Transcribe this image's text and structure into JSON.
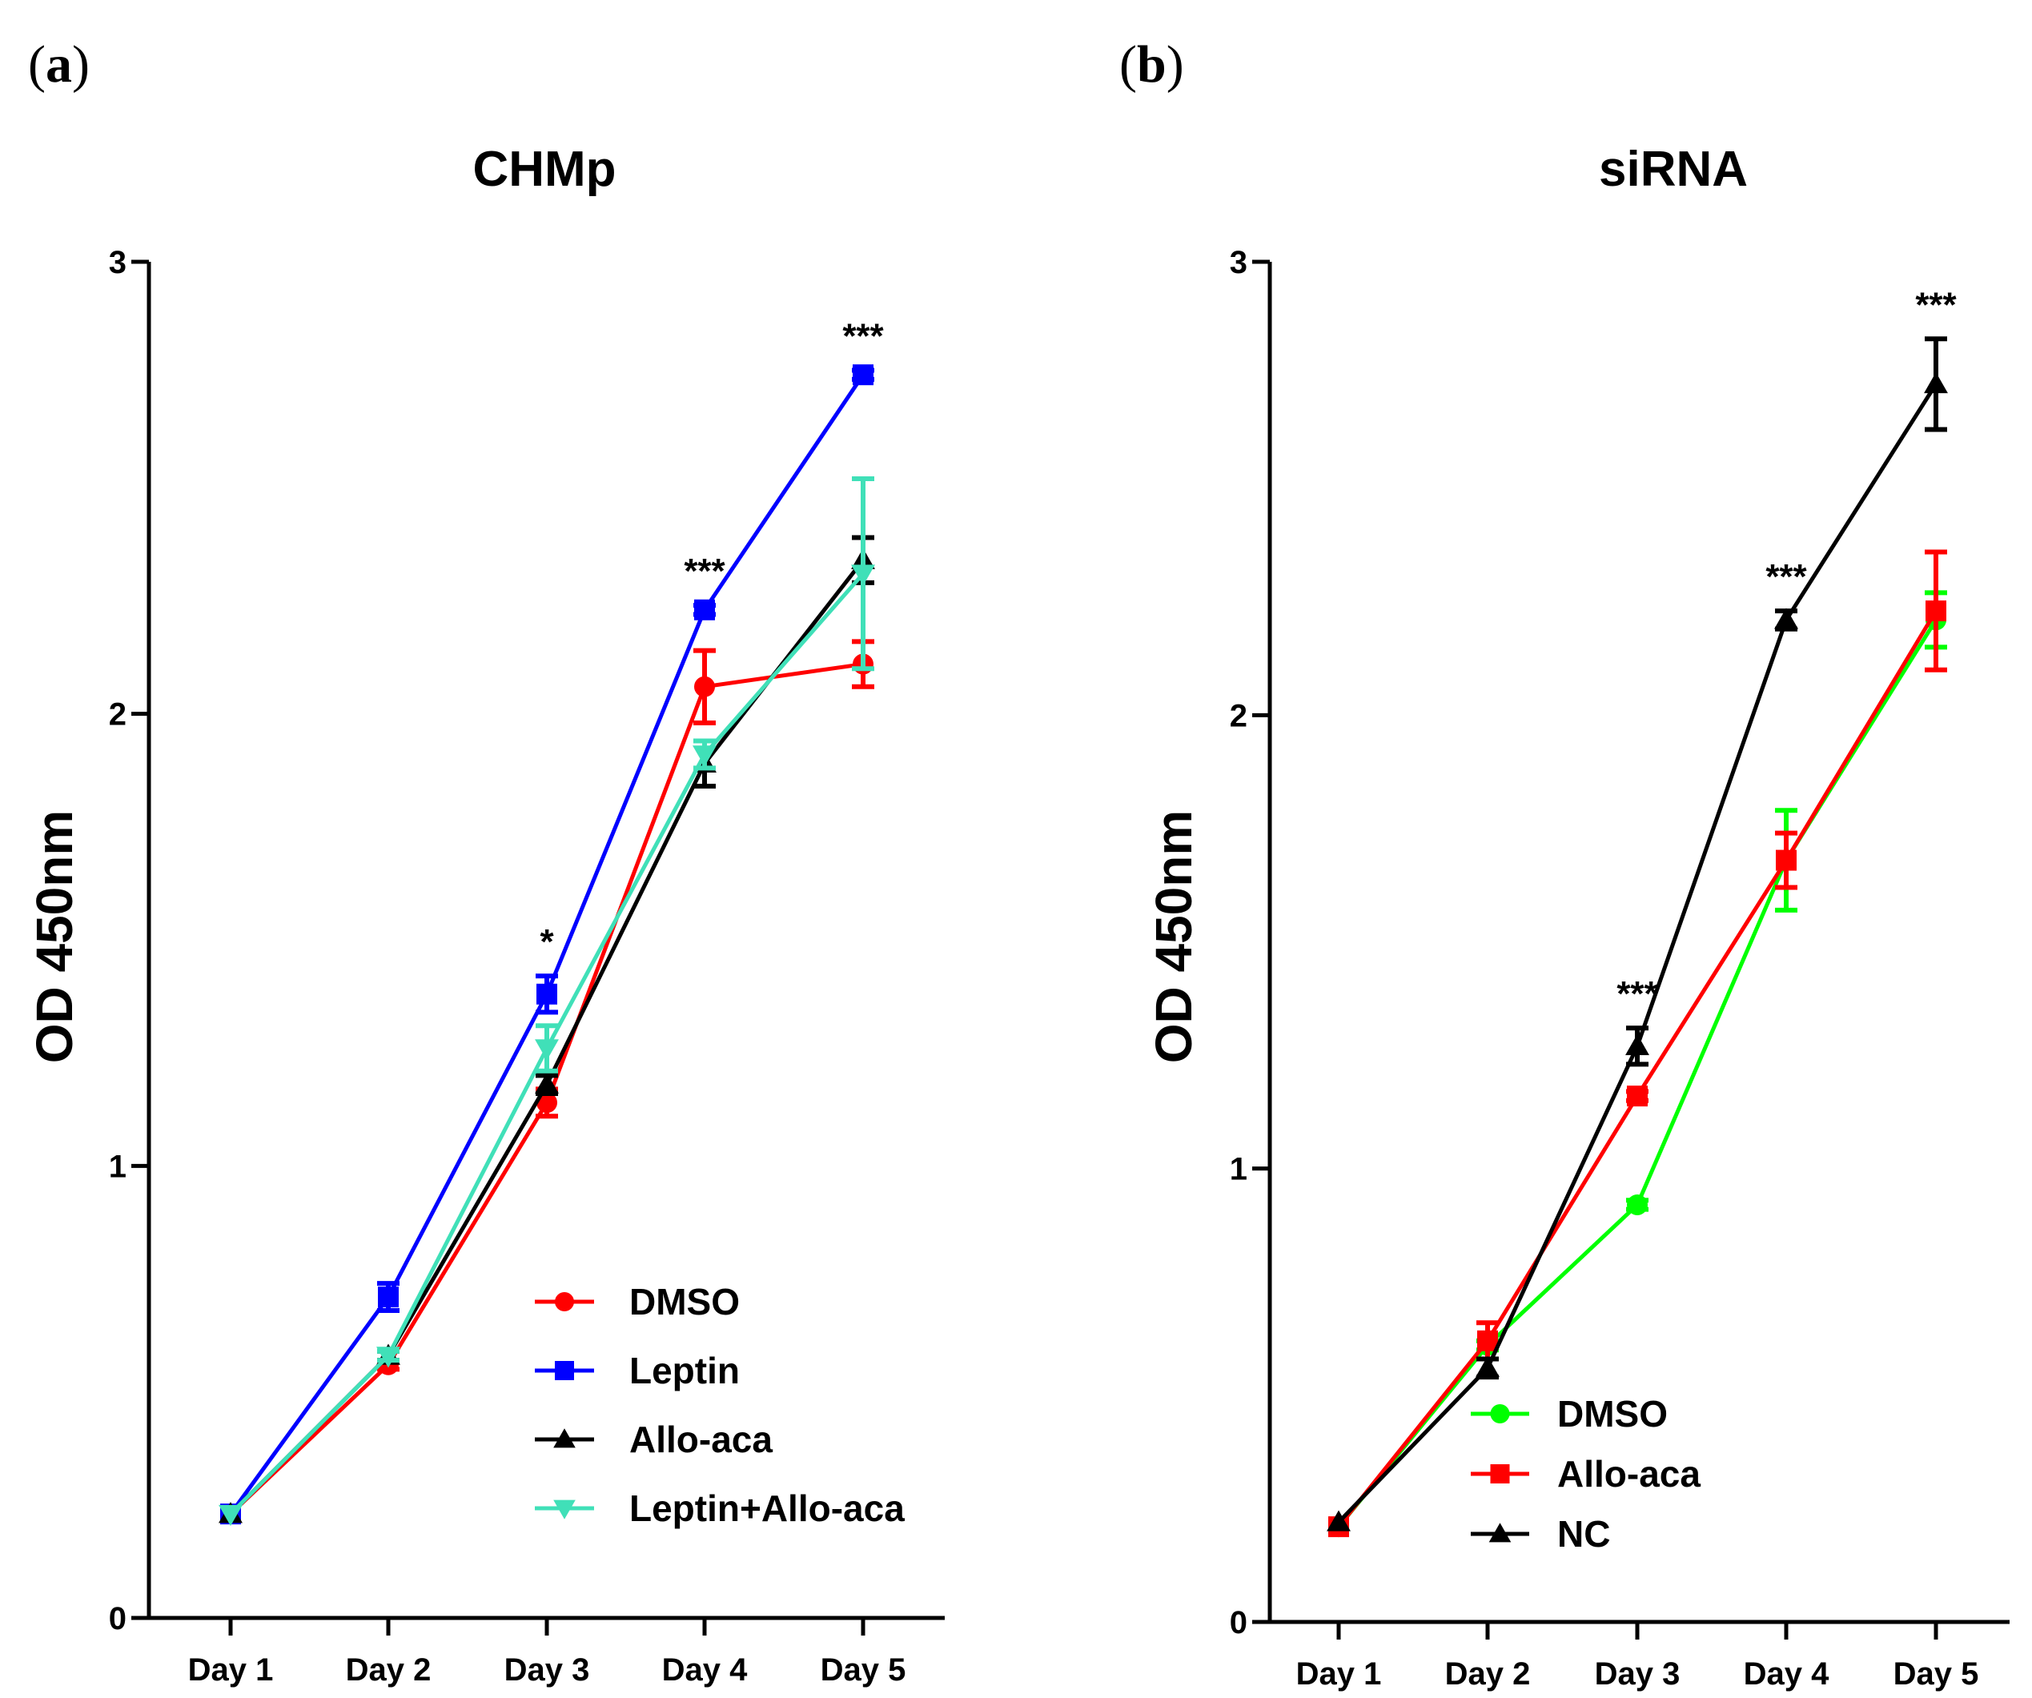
{
  "chart_data": [
    {
      "panel_label": "(a)",
      "type": "line",
      "title": "CHMp",
      "xlabel": "",
      "ylabel": "OD 450nm",
      "categories": [
        "Day 1",
        "Day 2",
        "Day 3",
        "Day 4",
        "Day 5"
      ],
      "ylim": [
        0,
        3
      ],
      "yticks": [
        0,
        1,
        2,
        3
      ],
      "legend_position": "bottom-right",
      "grid": false,
      "significance": [
        "",
        "",
        "*",
        "***",
        "***"
      ],
      "series": [
        {
          "name": "DMSO",
          "color": "#ff0000",
          "marker": "circle",
          "values": [
            0.23,
            0.56,
            1.14,
            2.06,
            2.11
          ],
          "errors": [
            0,
            0.01,
            0.03,
            0.08,
            0.05
          ]
        },
        {
          "name": "Leptin",
          "color": "#0000ff",
          "marker": "square",
          "values": [
            0.23,
            0.71,
            1.38,
            2.23,
            2.75
          ],
          "errors": [
            0,
            0.03,
            0.04,
            0.01,
            0.01
          ]
        },
        {
          "name": "Allo-aca",
          "color": "#000000",
          "marker": "triangle-up",
          "values": [
            0.23,
            0.58,
            1.18,
            1.89,
            2.34
          ],
          "errors": [
            0,
            0.01,
            0.02,
            0.05,
            0.05
          ]
        },
        {
          "name": "Leptin+Allo-aca",
          "color": "#40e0b8",
          "marker": "triangle-down",
          "values": [
            0.23,
            0.58,
            1.26,
            1.91,
            2.31
          ],
          "errors": [
            0,
            0.01,
            0.05,
            0.03,
            0.21
          ]
        }
      ]
    },
    {
      "panel_label": "(b)",
      "type": "line",
      "title": "siRNA",
      "xlabel": "",
      "ylabel": "OD 450nm",
      "categories": [
        "Day 1",
        "Day 2",
        "Day 3",
        "Day 4",
        "Day 5"
      ],
      "ylim": [
        0,
        3
      ],
      "yticks": [
        0,
        1,
        2,
        3
      ],
      "legend_position": "bottom-left",
      "grid": false,
      "significance": [
        "",
        "",
        "***",
        "***",
        "***"
      ],
      "series": [
        {
          "name": "DMSO",
          "color": "#00ff00",
          "marker": "circle",
          "values": [
            0.21,
            0.61,
            0.92,
            1.68,
            2.21
          ],
          "errors": [
            0,
            0.01,
            0.01,
            0.11,
            0.06
          ]
        },
        {
          "name": "Allo-aca",
          "color": "#ff0000",
          "marker": "square",
          "values": [
            0.21,
            0.62,
            1.16,
            1.68,
            2.23
          ],
          "errors": [
            0,
            0.04,
            0.01,
            0.06,
            0.13
          ]
        },
        {
          "name": "NC",
          "color": "#000000",
          "marker": "triangle-up",
          "values": [
            0.22,
            0.56,
            1.27,
            2.21,
            2.73
          ],
          "errors": [
            0,
            0.02,
            0.04,
            0.02,
            0.1
          ]
        }
      ]
    }
  ]
}
